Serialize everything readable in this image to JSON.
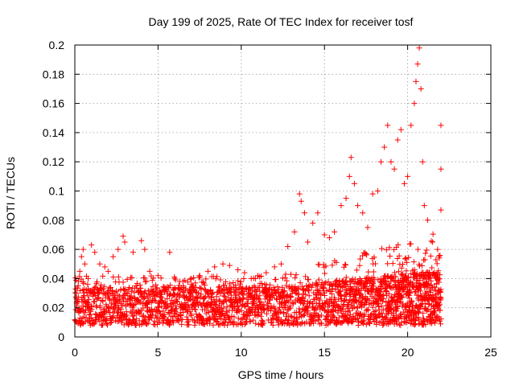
{
  "chart_data": {
    "type": "scatter",
    "title": "Day 199 of 2025, Rate Of TEC Index for receiver tosf",
    "xlabel": "GPS time / hours",
    "ylabel": "ROTI / TECUs",
    "xlim": [
      0,
      25
    ],
    "ylim": [
      0,
      0.2
    ],
    "xticks": [
      0,
      5,
      10,
      15,
      20,
      25
    ],
    "xtick_labels": [
      "0",
      "5",
      "10",
      "15",
      "20",
      "25"
    ],
    "yticks": [
      0,
      0.02,
      0.04,
      0.06,
      0.08,
      0.1,
      0.12,
      0.14,
      0.16,
      0.18,
      0.2
    ],
    "ytick_labels": [
      "0",
      "0.02",
      "0.04",
      "0.06",
      "0.08",
      "0.1",
      "0.12",
      "0.14",
      "0.16",
      "0.18",
      "0.2"
    ],
    "grid": true,
    "marker": "+",
    "series_color": "#ff0000",
    "series": [
      {
        "name": "ROTI",
        "points": [
          [
            0.1,
            0.03
          ],
          [
            0.2,
            0.035
          ],
          [
            0.3,
            0.045
          ],
          [
            0.4,
            0.055
          ],
          [
            0.5,
            0.06
          ],
          [
            0.6,
            0.05
          ],
          [
            0.8,
            0.04
          ],
          [
            1.0,
            0.063
          ],
          [
            1.2,
            0.058
          ],
          [
            1.5,
            0.05
          ],
          [
            1.8,
            0.048
          ],
          [
            2.0,
            0.045
          ],
          [
            2.3,
            0.055
          ],
          [
            2.6,
            0.06
          ],
          [
            2.9,
            0.069
          ],
          [
            3.0,
            0.065
          ],
          [
            3.5,
            0.058
          ],
          [
            4.0,
            0.066
          ],
          [
            4.2,
            0.06
          ],
          [
            4.5,
            0.045
          ],
          [
            5.0,
            0.042
          ],
          [
            5.7,
            0.058
          ],
          [
            6.0,
            0.04
          ],
          [
            6.5,
            0.038
          ],
          [
            7.0,
            0.04
          ],
          [
            7.5,
            0.042
          ],
          [
            8.0,
            0.045
          ],
          [
            8.4,
            0.048
          ],
          [
            8.9,
            0.05
          ],
          [
            9.3,
            0.049
          ],
          [
            9.8,
            0.046
          ],
          [
            10.2,
            0.044
          ],
          [
            10.6,
            0.04
          ],
          [
            11.0,
            0.042
          ],
          [
            11.5,
            0.044
          ],
          [
            12.0,
            0.048
          ],
          [
            12.4,
            0.05
          ],
          [
            12.8,
            0.062
          ],
          [
            13.2,
            0.072
          ],
          [
            13.5,
            0.098
          ],
          [
            13.6,
            0.093
          ],
          [
            13.8,
            0.085
          ],
          [
            14.0,
            0.065
          ],
          [
            14.3,
            0.078
          ],
          [
            14.6,
            0.085
          ],
          [
            15.0,
            0.07
          ],
          [
            15.3,
            0.068
          ],
          [
            15.6,
            0.072
          ],
          [
            16.0,
            0.09
          ],
          [
            16.3,
            0.095
          ],
          [
            16.5,
            0.11
          ],
          [
            16.6,
            0.123
          ],
          [
            16.8,
            0.105
          ],
          [
            17.0,
            0.09
          ],
          [
            17.3,
            0.085
          ],
          [
            17.6,
            0.075
          ],
          [
            17.9,
            0.098
          ],
          [
            18.2,
            0.1
          ],
          [
            18.4,
            0.12
          ],
          [
            18.6,
            0.13
          ],
          [
            18.8,
            0.145
          ],
          [
            19.0,
            0.12
          ],
          [
            19.2,
            0.115
          ],
          [
            19.4,
            0.135
          ],
          [
            19.6,
            0.142
          ],
          [
            19.8,
            0.105
          ],
          [
            20.0,
            0.11
          ],
          [
            20.2,
            0.145
          ],
          [
            20.4,
            0.16
          ],
          [
            20.5,
            0.175
          ],
          [
            20.6,
            0.187
          ],
          [
            20.7,
            0.198
          ],
          [
            20.8,
            0.17
          ],
          [
            20.9,
            0.12
          ],
          [
            21.0,
            0.09
          ],
          [
            21.2,
            0.08
          ],
          [
            21.5,
            0.065
          ],
          [
            21.8,
            0.06
          ],
          [
            22.0,
            0.145
          ],
          [
            22.0,
            0.115
          ],
          [
            22.0,
            0.087
          ]
        ],
        "dense_band": {
          "x_range": [
            0,
            22
          ],
          "description": "dense points between ROTI 0.005 and 0.035 across the whole day"
        }
      }
    ]
  }
}
